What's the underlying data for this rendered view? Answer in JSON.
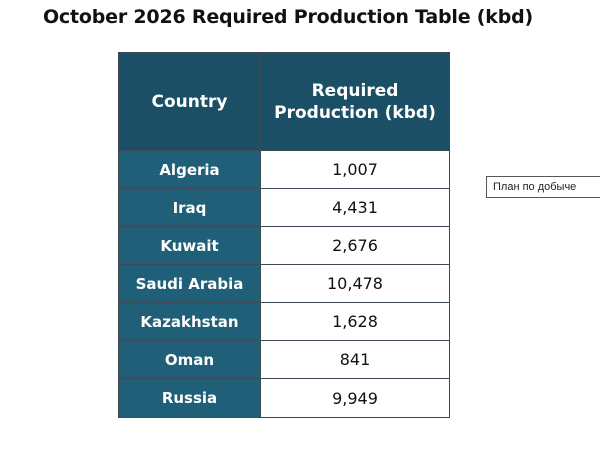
{
  "title": "October 2026 Required Production Table (kbd)",
  "table": {
    "header": {
      "country": "Country",
      "value": "Required Production (kbd)"
    },
    "rows": [
      {
        "country": "Algeria",
        "value": "1,007"
      },
      {
        "country": "Iraq",
        "value": "4,431"
      },
      {
        "country": "Kuwait",
        "value": "2,676"
      },
      {
        "country": "Saudi Arabia",
        "value": "10,478"
      },
      {
        "country": "Kazakhstan",
        "value": "1,628"
      },
      {
        "country": "Oman",
        "value": "841"
      },
      {
        "country": "Russia",
        "value": "9,949"
      }
    ]
  },
  "side_label": "План по добыче",
  "colors": {
    "header_bg": "#1b4f65",
    "country_cell_bg": "#1f5f78",
    "border": "#3d4a55"
  }
}
